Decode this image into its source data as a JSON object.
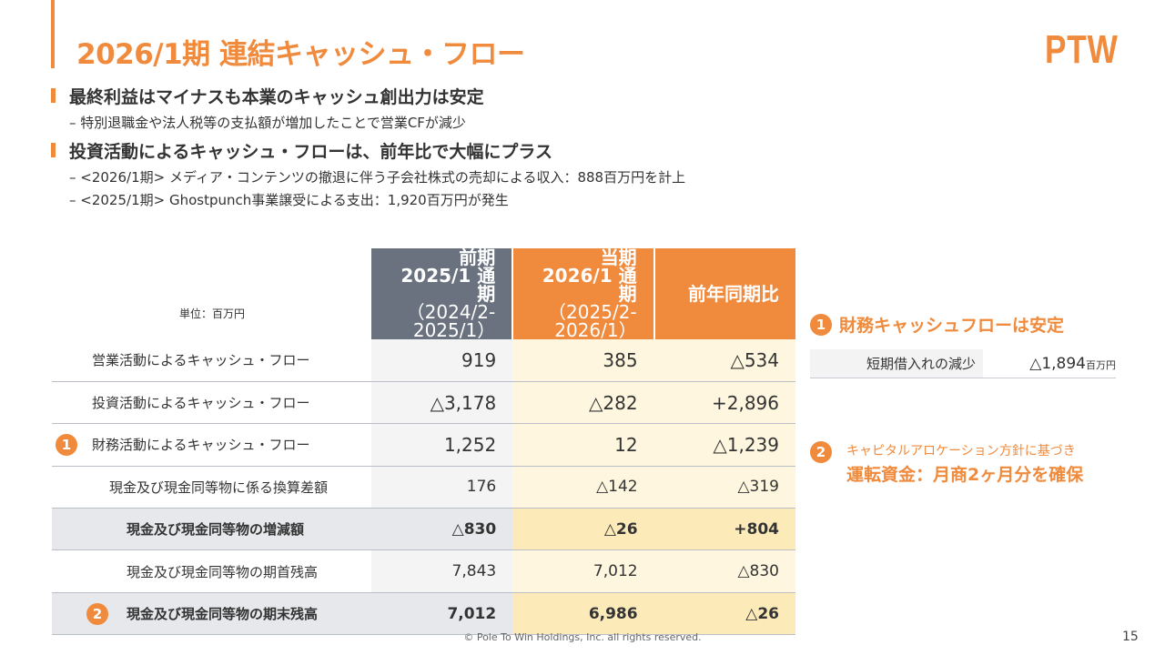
{
  "header": {
    "title": "2026/1期 連結キャッシュ・フロー",
    "logo": "PTW"
  },
  "bullets": [
    {
      "text": "最終利益はマイナスも本業のキャッシュ創出力は安定",
      "subs": [
        "– 特別退職金や法人税等の支払額が増加したことで営業CFが減少"
      ]
    },
    {
      "text": "投資活動によるキャッシュ・フローは、前年比で大幅にプラス",
      "subs": [
        "– <2026/1期> メディア・コンテンツの撤退に伴う子会社株式の売却による収入：888百万円を計上",
        "– <2025/1期> Ghostpunch事業譲受による支出：1,920百万円が発生"
      ]
    }
  ],
  "table": {
    "unit": "単位：百万円",
    "headers": [
      {
        "l1": "前期",
        "l2": "2025/1 通期",
        "l3": "（2024/2-2025/1）"
      },
      {
        "l1": "当期",
        "l2": "2026/1 通期",
        "l3": "（2025/2-2026/1）"
      },
      {
        "l1": "前年同期比"
      }
    ],
    "rows": [
      {
        "label": "営業活動によるキャッシュ・フロー",
        "v": [
          "919",
          "385",
          "△534"
        ]
      },
      {
        "label": "投資活動によるキャッシュ・フロー",
        "v": [
          "△3,178",
          "△282",
          "+2,896"
        ]
      },
      {
        "marker": "1",
        "label": "財務活動によるキャッシュ・フロー",
        "v": [
          "1,252",
          "12",
          "△1,239"
        ]
      },
      {
        "label": "現金及び現金同等物に係る換算差額",
        "v": [
          "176",
          "△142",
          "△319"
        ]
      },
      {
        "label": "現金及び現金同等物の増減額",
        "v": [
          "△830",
          "△26",
          "+804"
        ]
      },
      {
        "label": "現金及び現金同等物の期首残高",
        "v": [
          "7,843",
          "7,012",
          "△830"
        ]
      },
      {
        "marker": "2",
        "label": "現金及び現金同等物の期末残高",
        "v": [
          "7,012",
          "6,986",
          "△26"
        ]
      }
    ]
  },
  "side": {
    "p1": {
      "marker": "1",
      "title": "財務キャッシュフローは安定",
      "item": "短期借入れの減少",
      "value": "△1,894",
      "unit": "百万円"
    },
    "p2": {
      "marker": "2",
      "line1": "キャピタルアロケーション方針に基づき",
      "line2": "運転資金：月商2ヶ月分を確保"
    }
  },
  "footer": {
    "copyright": "© Pole To Win Holdings, Inc. all rights reserved.",
    "page": "15"
  }
}
